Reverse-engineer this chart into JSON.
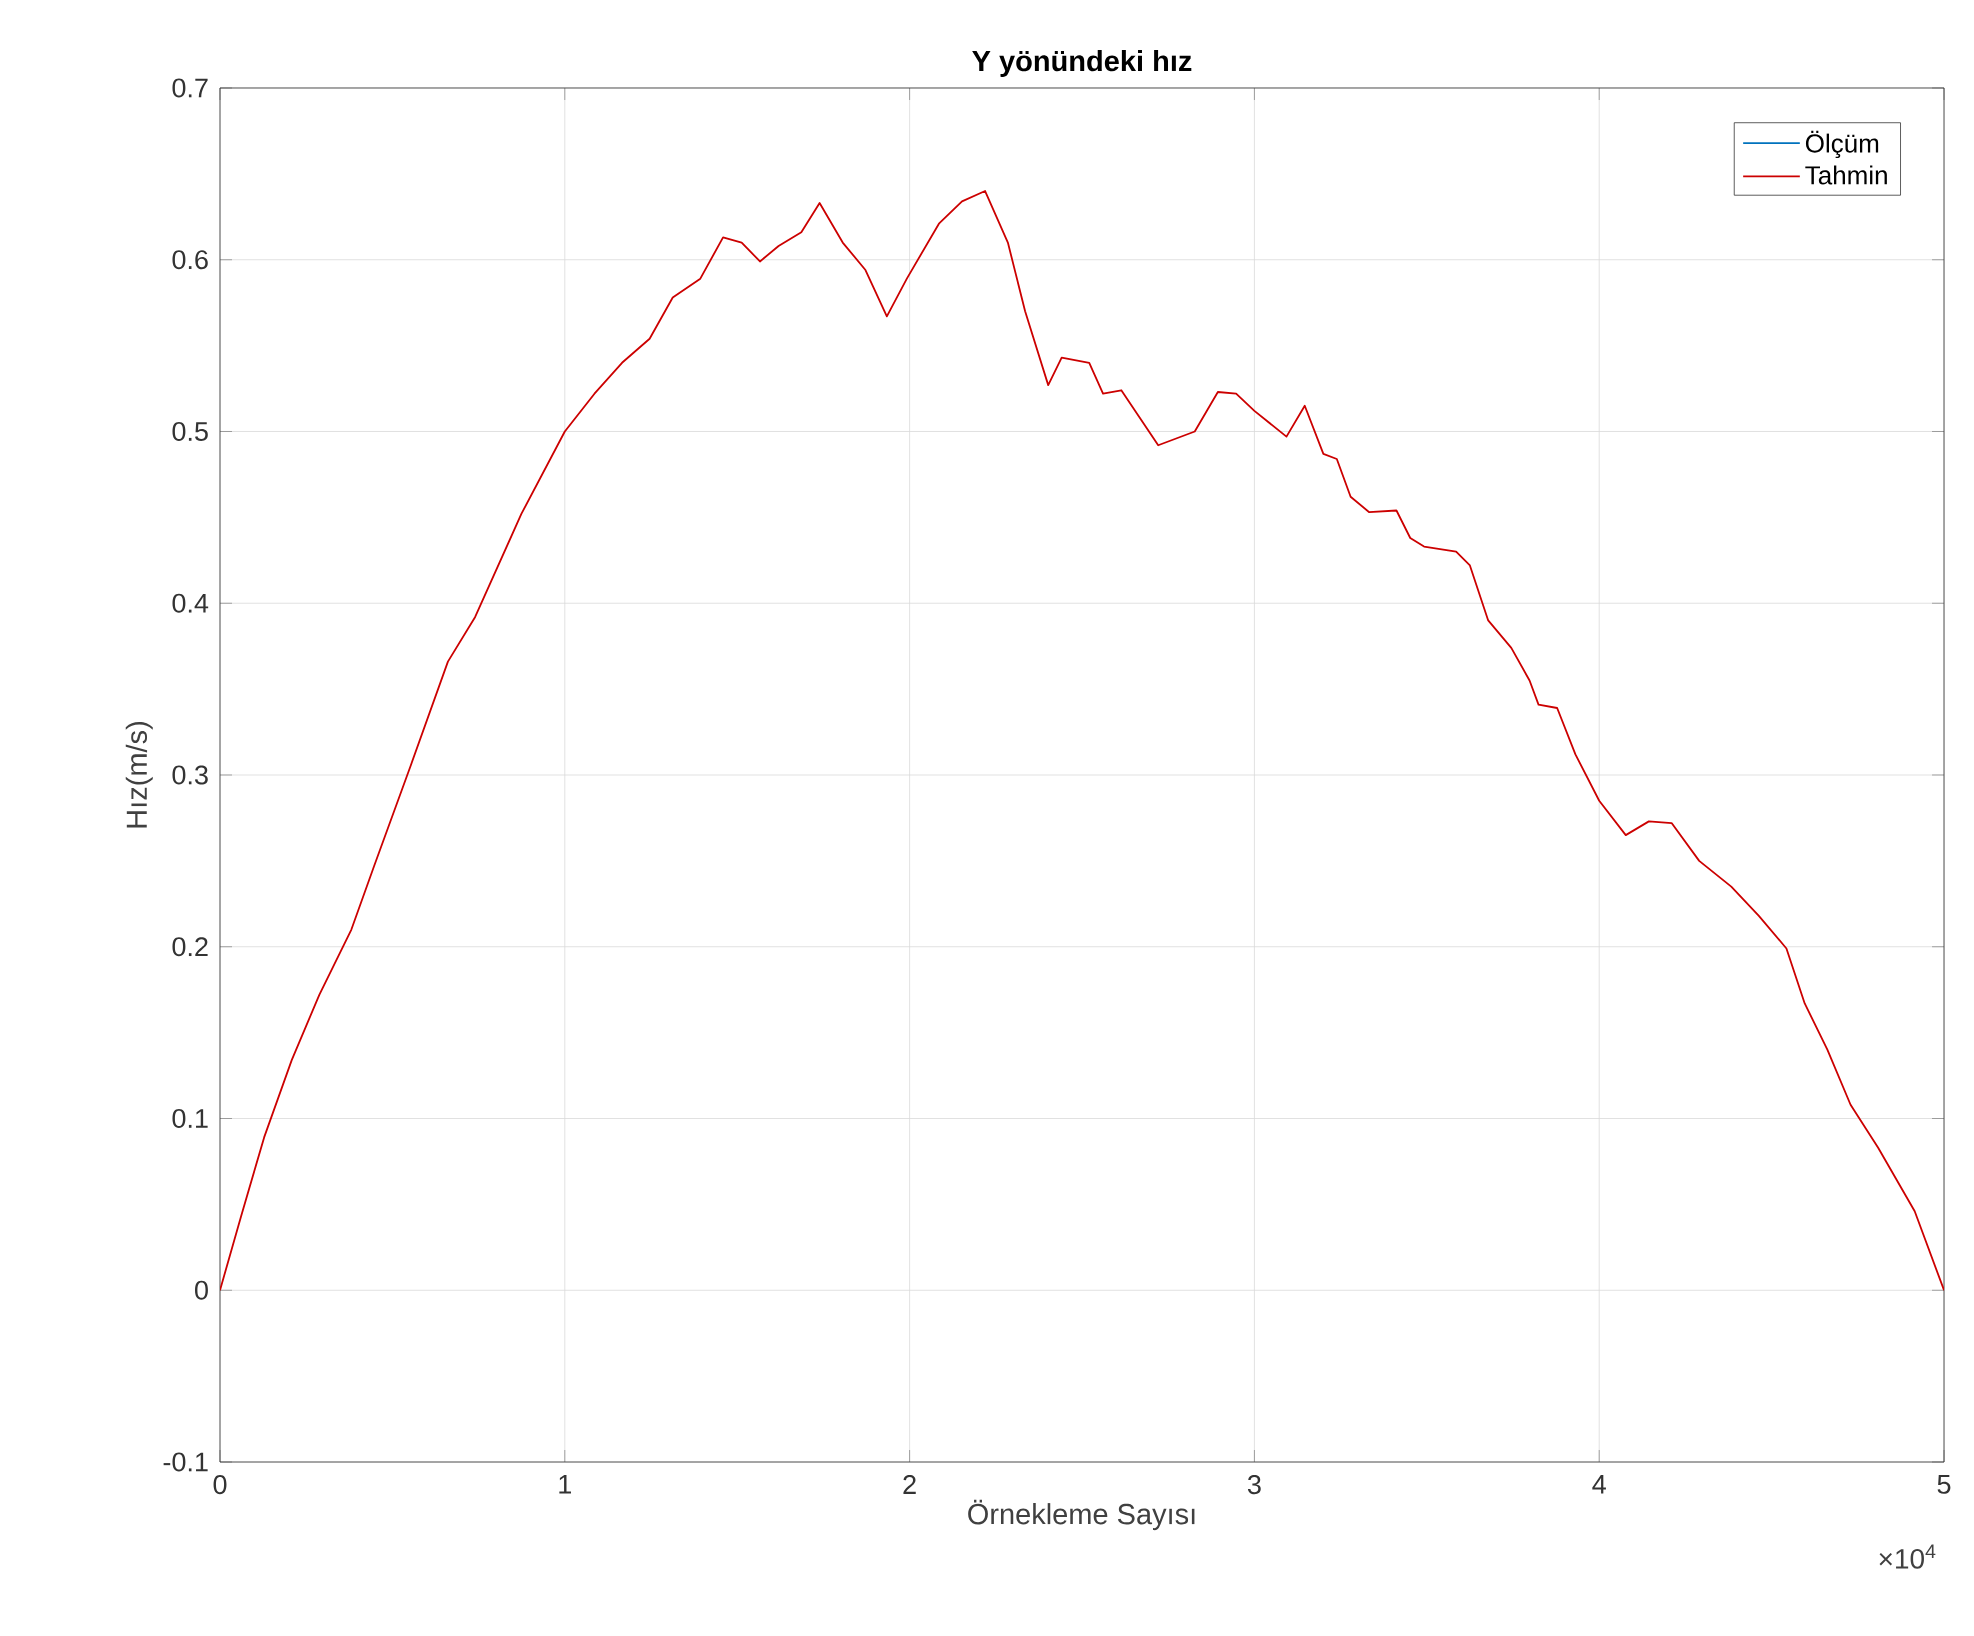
{
  "chart_data": {
    "type": "line",
    "title": "Y yönündeki hız",
    "xlabel": "Örnekleme Sayısı",
    "ylabel": "Hız(m/s)",
    "annotations": [
      "×10$^{4}$"
    ],
    "x": [
      0,
      0.061,
      0.128,
      0.208,
      0.288,
      0.381,
      0.447,
      0.554,
      0.661,
      0.74,
      0.874,
      1,
      1.086,
      1.166,
      1.246,
      1.313,
      1.393,
      1.459,
      1.513,
      1.566,
      1.62,
      1.686,
      1.739,
      1.806,
      1.872,
      1.934,
      1.992,
      2.085,
      2.152,
      2.219,
      2.285,
      2.335,
      2.402,
      2.441,
      2.521,
      2.561,
      2.614,
      2.721,
      2.827,
      2.894,
      2.947,
      3,
      3.093,
      3.146,
      3.2,
      3.239,
      3.279,
      3.333,
      3.412,
      3.452,
      3.492,
      3.585,
      3.625,
      3.678,
      3.745,
      3.798,
      3.824,
      3.878,
      3.931,
      4,
      4.077,
      4.144,
      4.21,
      4.29,
      4.383,
      4.463,
      4.543,
      4.596,
      4.662,
      4.729,
      4.809,
      4.915,
      5
    ],
    "series": [
      {
        "name": "Ölçüm",
        "color": "#0072bd",
        "values": [
          null,
          null,
          null,
          null,
          null,
          null,
          null,
          null,
          null,
          null,
          null,
          null,
          null,
          null,
          null,
          null,
          null,
          null,
          null,
          null,
          null,
          null,
          null,
          null,
          null,
          null,
          null,
          null,
          null,
          null,
          null,
          null,
          null,
          null,
          null,
          null,
          null,
          null,
          null,
          null,
          null,
          null,
          null,
          null,
          null,
          null,
          null,
          null,
          null,
          null,
          null,
          null,
          null,
          null,
          null,
          null,
          null,
          null,
          null,
          null,
          null,
          null,
          null,
          null,
          null,
          null,
          null,
          null,
          null,
          null,
          null,
          null,
          null
        ]
      },
      {
        "name": "Tahmin",
        "color": "#cc0000",
        "values": [
          0,
          0.043,
          0.089,
          0.134,
          0.172,
          0.21,
          0.247,
          0.306,
          0.366,
          0.392,
          0.452,
          0.5,
          0.522,
          0.54,
          0.554,
          0.578,
          0.589,
          0.613,
          0.61,
          0.599,
          0.608,
          0.616,
          0.633,
          0.61,
          0.594,
          0.567,
          0.589,
          0.621,
          0.634,
          0.64,
          0.61,
          0.57,
          0.527,
          0.543,
          0.54,
          0.522,
          0.524,
          0.492,
          0.5,
          0.523,
          0.522,
          0.512,
          0.497,
          0.515,
          0.487,
          0.484,
          0.462,
          0.453,
          0.454,
          0.438,
          0.433,
          0.43,
          0.422,
          0.39,
          0.374,
          0.355,
          0.341,
          0.339,
          0.312,
          0.285,
          0.265,
          0.273,
          0.272,
          0.25,
          0.235,
          0.218,
          0.199,
          0.167,
          0.14,
          0.108,
          0.083,
          0.046,
          0
        ]
      }
    ],
    "xlim": [
      0,
      5
    ],
    "xticks": [
      0,
      1,
      2,
      3,
      4,
      5
    ],
    "ylim": [
      -0.1,
      0.7
    ],
    "yticks": [
      -0.1,
      0,
      0.1,
      0.2,
      0.3,
      0.4,
      0.5,
      0.6,
      0.7
    ],
    "grid": true,
    "legend": "top right"
  }
}
